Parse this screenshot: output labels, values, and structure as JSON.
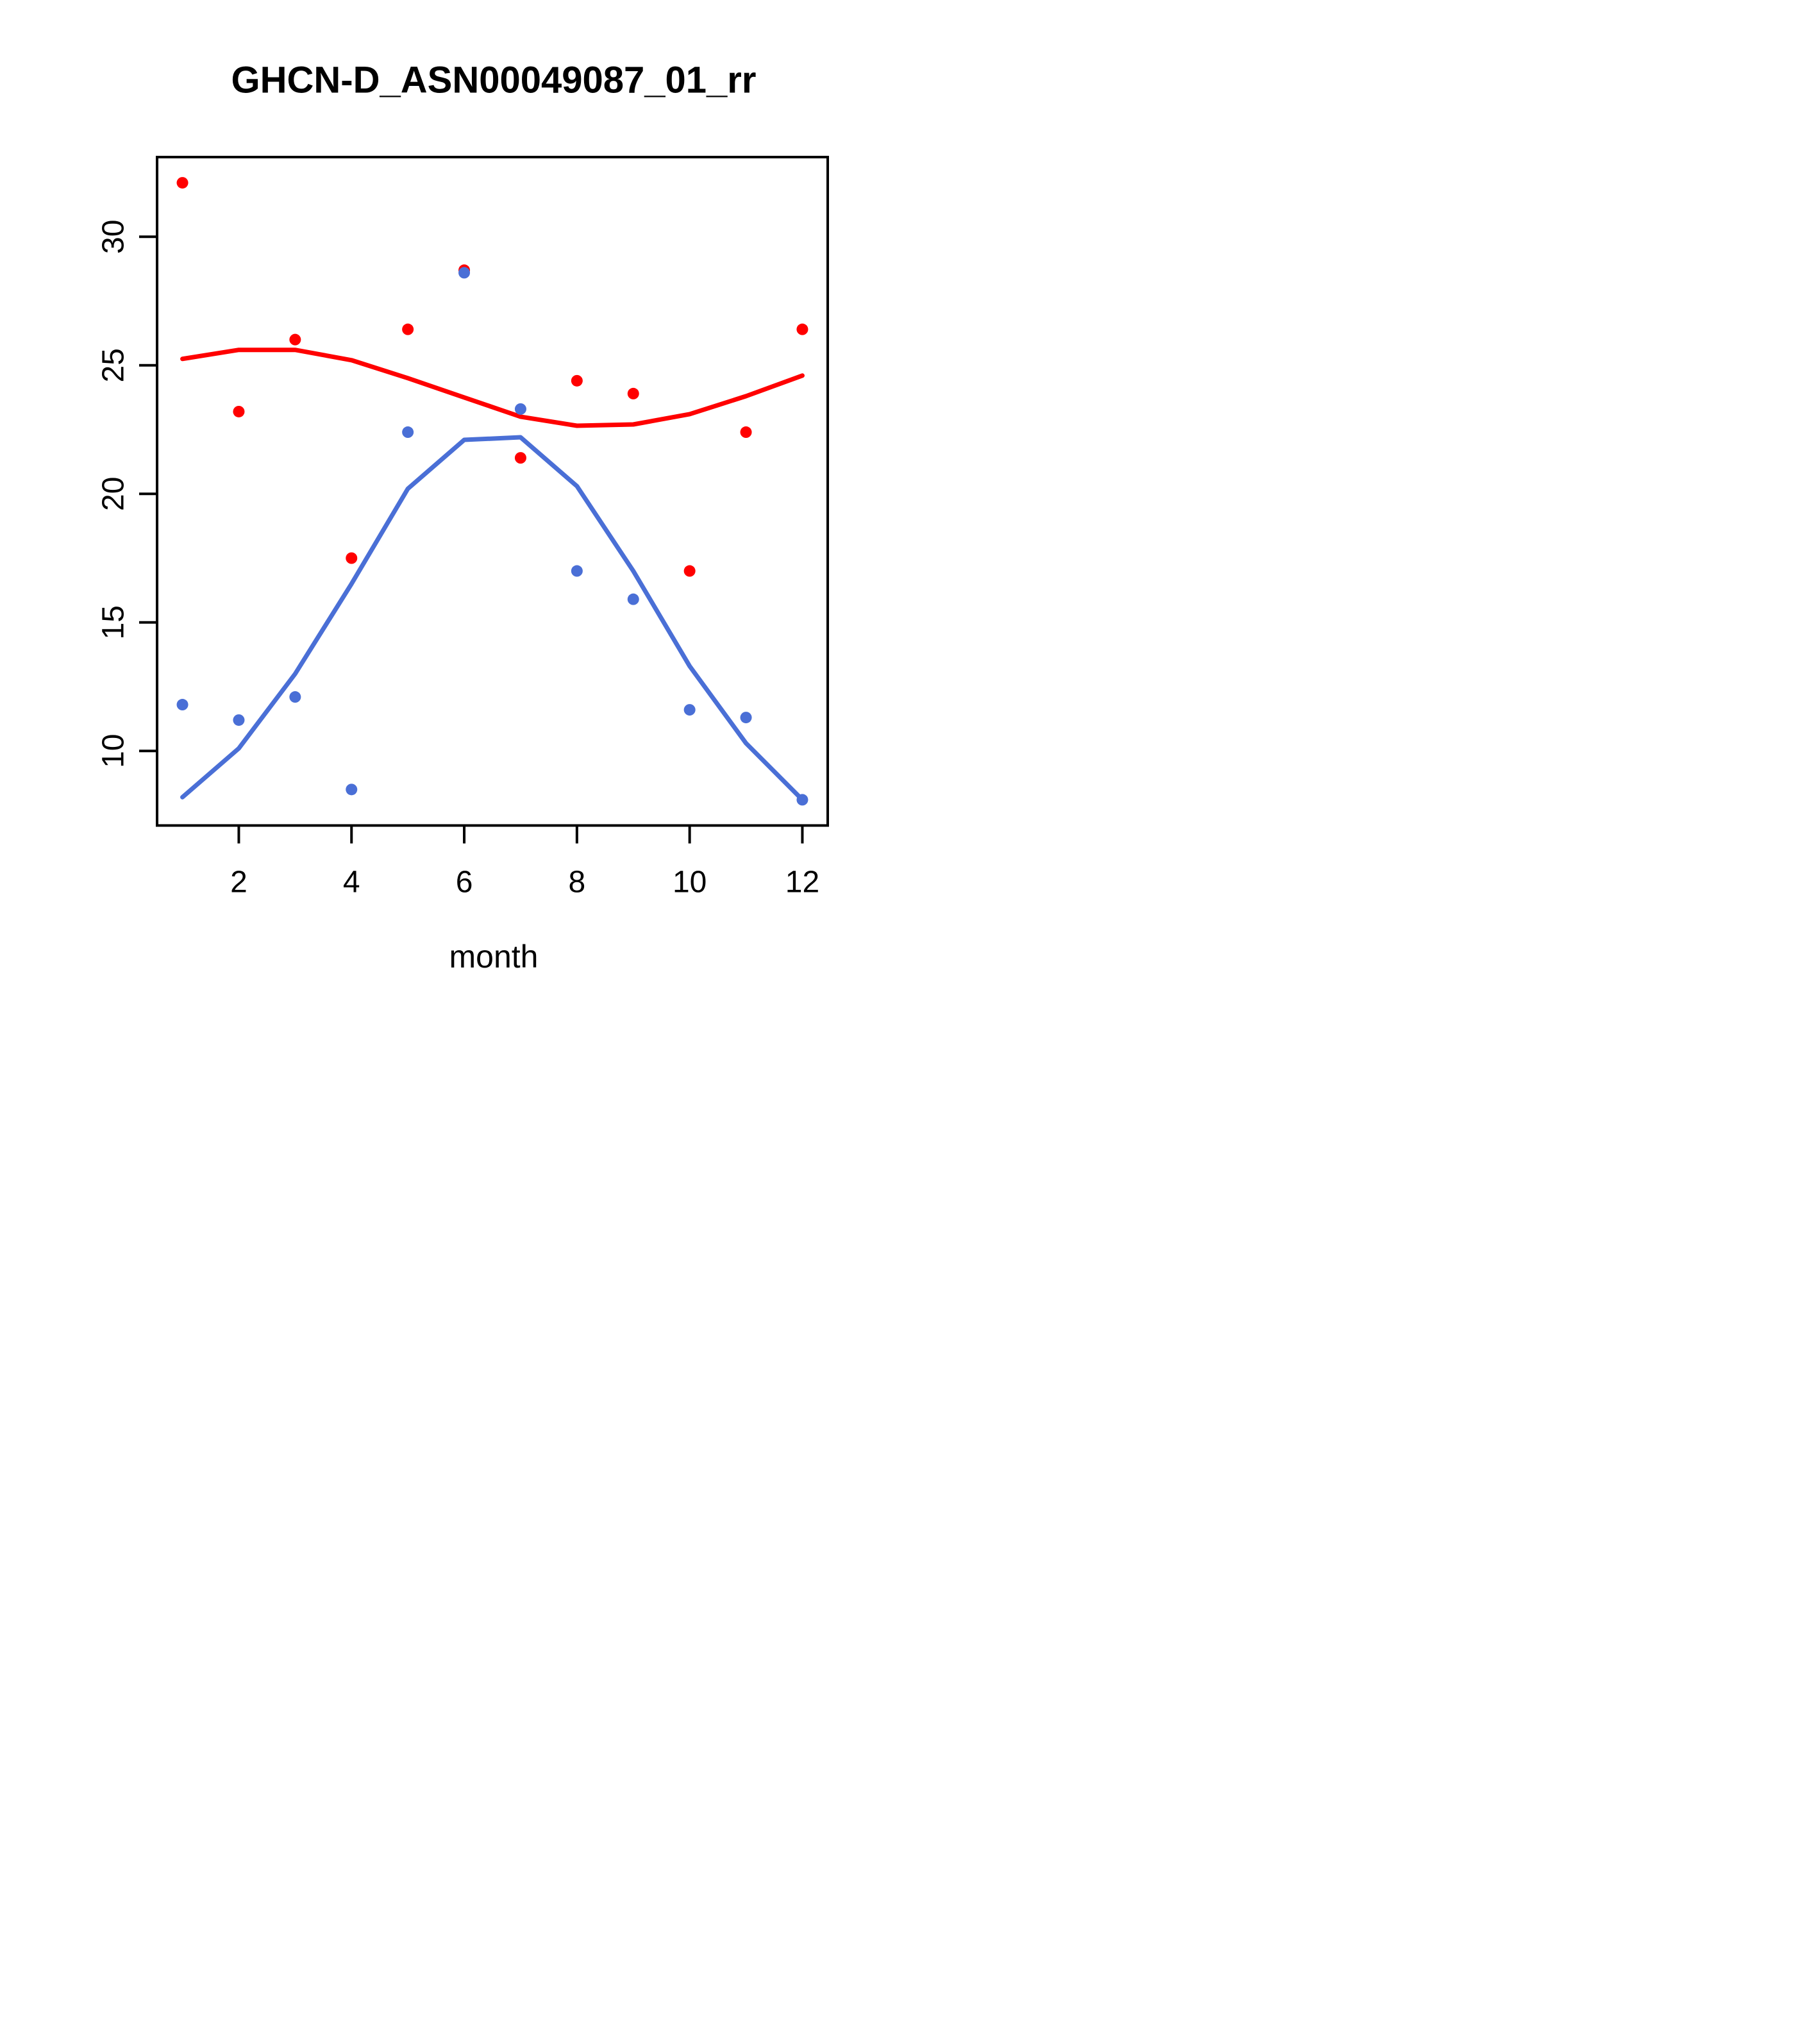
{
  "page": {
    "title": "GHCN-D_ASN00049087_01_rr"
  },
  "chart_data": {
    "type": "scatter",
    "title": "GHCN-D_ASN00049087_01_rr",
    "xlabel": "month",
    "ylabel": "",
    "x": [
      1,
      2,
      3,
      4,
      5,
      6,
      7,
      8,
      9,
      10,
      11,
      12
    ],
    "xlim": [
      0.55,
      12.45
    ],
    "ylim": [
      7.1,
      33.1
    ],
    "x_ticks": [
      2,
      4,
      6,
      8,
      10,
      12
    ],
    "y_ticks": [
      10,
      15,
      20,
      25,
      30
    ],
    "grid": false,
    "legend": "none",
    "background": "#ffffff",
    "axis_color": "#000000",
    "series": [
      {
        "name": "red-loess-line",
        "type": "line",
        "color": "#FF0000",
        "values": [
          25.25,
          25.6,
          25.6,
          25.2,
          24.5,
          23.75,
          23.0,
          22.65,
          22.7,
          23.1,
          23.8,
          24.6
        ]
      },
      {
        "name": "blue-loess-line",
        "type": "line",
        "color": "#4A6FD6",
        "values": [
          8.2,
          10.1,
          13.0,
          16.5,
          20.2,
          22.1,
          22.2,
          20.3,
          17.0,
          13.3,
          10.3,
          8.1
        ]
      },
      {
        "name": "red-points",
        "type": "scatter",
        "color": "#FF0000",
        "values": [
          32.1,
          23.2,
          26.0,
          17.5,
          26.4,
          28.7,
          21.4,
          24.4,
          23.9,
          17.0,
          22.4,
          26.4
        ]
      },
      {
        "name": "blue-points",
        "type": "scatter",
        "color": "#4A6FD6",
        "values": [
          11.8,
          11.2,
          12.1,
          8.5,
          22.4,
          28.6,
          23.3,
          17.0,
          15.9,
          11.6,
          11.3,
          8.1
        ]
      }
    ]
  }
}
